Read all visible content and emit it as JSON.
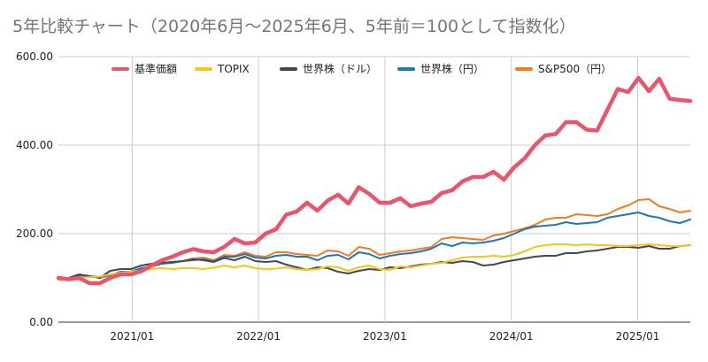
{
  "chart_data": {
    "type": "line",
    "title": "5年比較チャート（2020年6月〜2025年6月、5年前＝100として指数化）",
    "xlabel": "",
    "ylabel": "",
    "ylim": [
      0,
      600
    ],
    "y_ticks": [
      0,
      200,
      400,
      600
    ],
    "y_tick_labels": [
      "0.00",
      "200.00",
      "400.00",
      "600.00"
    ],
    "x_ticks": [
      "2021/01",
      "2022/01",
      "2023/01",
      "2024/01",
      "2025/01"
    ],
    "x_start": "2020/06",
    "x_end": "2025/06",
    "legend_position": "top",
    "grid": "vertical lines at x ticks, horizontal lines at y ticks",
    "series": [
      {
        "name": "基準価額",
        "color": "#e8566d",
        "values": [
          100,
          97,
          100,
          88,
          88,
          100,
          108,
          108,
          115,
          128,
          140,
          148,
          158,
          165,
          160,
          158,
          170,
          188,
          178,
          180,
          200,
          210,
          243,
          250,
          270,
          252,
          275,
          288,
          268,
          305,
          290,
          270,
          270,
          280,
          262,
          268,
          272,
          292,
          298,
          318,
          328,
          328,
          340,
          322,
          350,
          370,
          400,
          422,
          425,
          452,
          452,
          435,
          433,
          480,
          527,
          520,
          552,
          522,
          550,
          505,
          502,
          500
        ]
      },
      {
        "name": "TOPIX",
        "color": "#f5c518",
        "values": [
          95,
          95,
          100,
          102,
          103,
          108,
          112,
          114,
          117,
          120,
          122,
          120,
          122,
          122,
          120,
          123,
          128,
          124,
          128,
          122,
          120,
          121,
          124,
          120,
          118,
          120,
          126,
          124,
          116,
          124,
          128,
          120,
          118,
          126,
          124,
          128,
          132,
          134,
          140,
          146,
          148,
          148,
          150,
          148,
          152,
          160,
          170,
          174,
          176,
          176,
          174,
          176,
          174,
          174,
          172,
          172,
          174,
          176,
          174,
          172,
          172,
          174
        ]
      },
      {
        "name": "世界株（ドル）",
        "color": "#4a4358",
        "values": [
          100,
          100,
          108,
          104,
          100,
          116,
          120,
          120,
          128,
          132,
          134,
          136,
          138,
          142,
          140,
          136,
          145,
          140,
          148,
          138,
          136,
          138,
          130,
          124,
          118,
          124,
          122,
          114,
          110,
          116,
          120,
          118,
          124,
          122,
          126,
          130,
          132,
          136,
          134,
          138,
          136,
          128,
          130,
          136,
          140,
          144,
          148,
          150,
          150,
          156,
          156,
          160,
          162,
          166,
          170,
          170,
          168,
          172,
          166,
          166,
          172,
          174
        ]
      },
      {
        "name": "世界株（円）",
        "color": "#1f77b4",
        "values": [
          100,
          98,
          106,
          104,
          102,
          106,
          114,
          114,
          122,
          126,
          132,
          134,
          138,
          140,
          142,
          138,
          148,
          148,
          154,
          146,
          144,
          150,
          152,
          148,
          148,
          140,
          150,
          152,
          142,
          158,
          154,
          144,
          150,
          154,
          156,
          160,
          166,
          178,
          172,
          180,
          178,
          180,
          184,
          190,
          200,
          210,
          216,
          218,
          220,
          226,
          222,
          224,
          226,
          236,
          240,
          244,
          248,
          240,
          236,
          228,
          224,
          232
        ]
      },
      {
        "name": "S&P500（円）",
        "color": "#f07d22",
        "values": [
          100,
          98,
          106,
          104,
          100,
          106,
          114,
          114,
          122,
          126,
          134,
          136,
          138,
          144,
          146,
          140,
          152,
          150,
          158,
          150,
          148,
          158,
          158,
          154,
          152,
          150,
          162,
          160,
          150,
          170,
          166,
          152,
          156,
          160,
          162,
          166,
          170,
          188,
          192,
          190,
          188,
          186,
          196,
          200,
          206,
          212,
          220,
          232,
          236,
          236,
          244,
          242,
          240,
          244,
          256,
          264,
          276,
          278,
          262,
          256,
          248,
          252
        ]
      }
    ]
  }
}
